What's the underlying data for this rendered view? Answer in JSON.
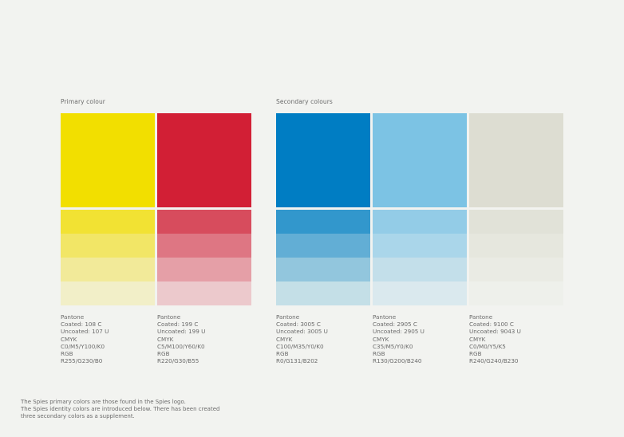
{
  "primary": {
    "title": "Primary colour",
    "swatches": [
      {
        "color": "#f2df00",
        "tints": [
          "#f2e233",
          "#f2e666",
          "#f2ea99",
          "#f2efc8"
        ],
        "specs": [
          "Pantone",
          "Coated: 108 C",
          "Uncoated: 107 U",
          "CMYK",
          "C0/M5/Y100/K0",
          "RGB",
          "R255/G230/B0"
        ]
      },
      {
        "color": "#d21f35",
        "tints": [
          "#d74c5d",
          "#de7683",
          "#e59fa7",
          "#ecc9cc"
        ],
        "specs": [
          "Pantone",
          "Coated: 199 C",
          "Uncoated: 199 U",
          "CMYK",
          "C5/M100/Y60/K0",
          "RGB",
          "R220/G30/B55"
        ]
      }
    ]
  },
  "secondary": {
    "title": "Secondary colours",
    "swatches": [
      {
        "color": "#007dc3",
        "tints": [
          "#3297cc",
          "#62aed5",
          "#92c6dd",
          "#c4dfe7"
        ],
        "specs": [
          "Pantone",
          "Coated: 3005 C",
          "Uncoated: 3005 U",
          "CMYK",
          "C100/M35/Y0/K0",
          "RGB",
          "R0/G131/B202"
        ]
      },
      {
        "color": "#7cc3e4",
        "tints": [
          "#93cce7",
          "#aad6ea",
          "#c3dfea",
          "#dae9ee"
        ],
        "specs": [
          "Pantone",
          "Coated: 2905 C",
          "Uncoated: 2905 U",
          "CMYK",
          "C35/M5/Y0/K0",
          "RGB",
          "R130/G200/B240"
        ]
      },
      {
        "color": "#ddddd2",
        "tints": [
          "#e1e2d8",
          "#e6e7de",
          "#eaebe4",
          "#eef0eb"
        ],
        "specs": [
          "Pantone",
          "Coated: 9100 C",
          "Uncoated: 9043 U",
          "CMYK",
          "C0/M0/Y5/K5",
          "RGB",
          "R240/G240/B230"
        ]
      }
    ]
  },
  "note": [
    "The Spies primary colors are those found in the Spies logo.",
    "The Spies identity colors are introduced below. There has been created",
    "three secondary colors as a supplement."
  ]
}
